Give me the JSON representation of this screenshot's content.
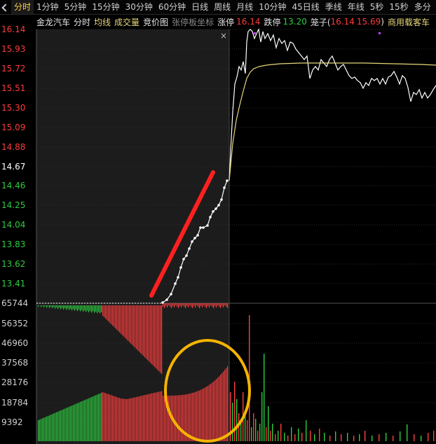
{
  "tabs": [
    {
      "label": "分时",
      "active": true
    },
    {
      "label": "1分钟"
    },
    {
      "label": "5分钟"
    },
    {
      "label": "15分钟"
    },
    {
      "label": "30分钟"
    },
    {
      "label": "60分钟"
    },
    {
      "label": "日线"
    },
    {
      "label": "周线"
    },
    {
      "label": "月线"
    },
    {
      "label": "10分钟"
    },
    {
      "label": "45日线"
    },
    {
      "label": "季线"
    },
    {
      "label": "年线"
    },
    {
      "label": "5秒"
    },
    {
      "label": "15秒"
    },
    {
      "label": "多分"
    }
  ],
  "info": {
    "stock_name": "金龙汽车",
    "mode": "分时",
    "avg_line": "均线",
    "volume": "成交量",
    "auction": "竞价图",
    "limit_coord": "张停板坐标",
    "limit_up_label": "涨停",
    "limit_up_value": "16.14",
    "limit_down_label": "跌停",
    "limit_down_value": "13.20",
    "cage_label": "笼子(",
    "cage_high": "16.14",
    "cage_low": "15.69",
    "cage_close": ")",
    "sector": "商用载客车",
    "close_icon": "close-icon"
  },
  "price_axis": {
    "labels": [
      "16.14",
      "15.93",
      "15.72",
      "15.51",
      "15.30",
      "15.09",
      "14.88",
      "14.67",
      "14.46",
      "14.25",
      "14.04",
      "13.83",
      "13.62",
      "13.41"
    ],
    "prev_close": "14.67",
    "colors": {
      "up": "#ff3b3b",
      "flat": "#ffffff",
      "down": "#2ecc40"
    }
  },
  "volume_axis": {
    "labels": [
      "65744",
      "56352",
      "46960",
      "37568",
      "28176",
      "18784",
      "9392"
    ]
  },
  "colors": {
    "price_line": "#ffffff",
    "avg_line": "#e8d77a",
    "annotation_arrow": "#ff2020",
    "annotation_circle": "#f5b400",
    "volume_up": "#ff4040",
    "volume_down": "#2ecc40",
    "grid": "#2a2a2a",
    "auction_bg": "#1c1c1c"
  }
}
